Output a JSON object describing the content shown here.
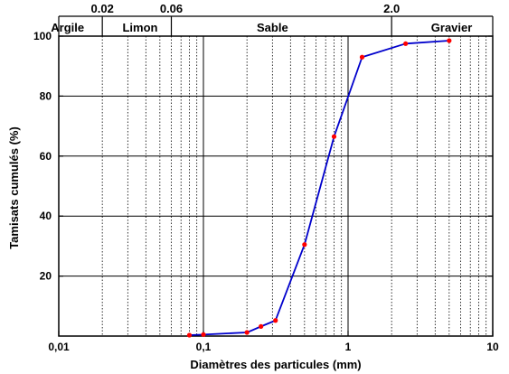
{
  "chart_data": {
    "type": "line",
    "xscale": "log",
    "xlim": [
      0.01,
      10
    ],
    "ylim": [
      0,
      100
    ],
    "xlabel": "Diamètres des particules (mm)",
    "ylabel": "Tamisats cumulés (%)",
    "x_tick_values": [
      0.01,
      0.1,
      1,
      10
    ],
    "x_tick_labels": [
      "0,01",
      "0,1",
      "1",
      "10"
    ],
    "y_tick_values": [
      20,
      40,
      60,
      80,
      100
    ],
    "y_tick_labels": [
      "20",
      "40",
      "60",
      "80",
      "100"
    ],
    "grid": true,
    "line_color": "#0000cc",
    "marker_color": "#ff0000",
    "series": [
      {
        "x": [
          0.08,
          0.1,
          0.2,
          0.25,
          0.315,
          0.5,
          0.8,
          1.25,
          2.5,
          5
        ],
        "y": [
          0.3,
          0.5,
          1.2,
          3.2,
          5.2,
          30.5,
          66.5,
          93,
          97.5,
          98.5
        ]
      }
    ],
    "size_classes": {
      "boundary_values": [
        0.02,
        0.06,
        2.0
      ],
      "boundary_labels": [
        "0.02",
        "0.06",
        "2.0"
      ],
      "class_names": [
        "Argile",
        "Limon",
        "Sable",
        "Gravier"
      ],
      "class_centers": [
        0.0115,
        0.0365,
        0.3,
        5.2
      ]
    }
  }
}
